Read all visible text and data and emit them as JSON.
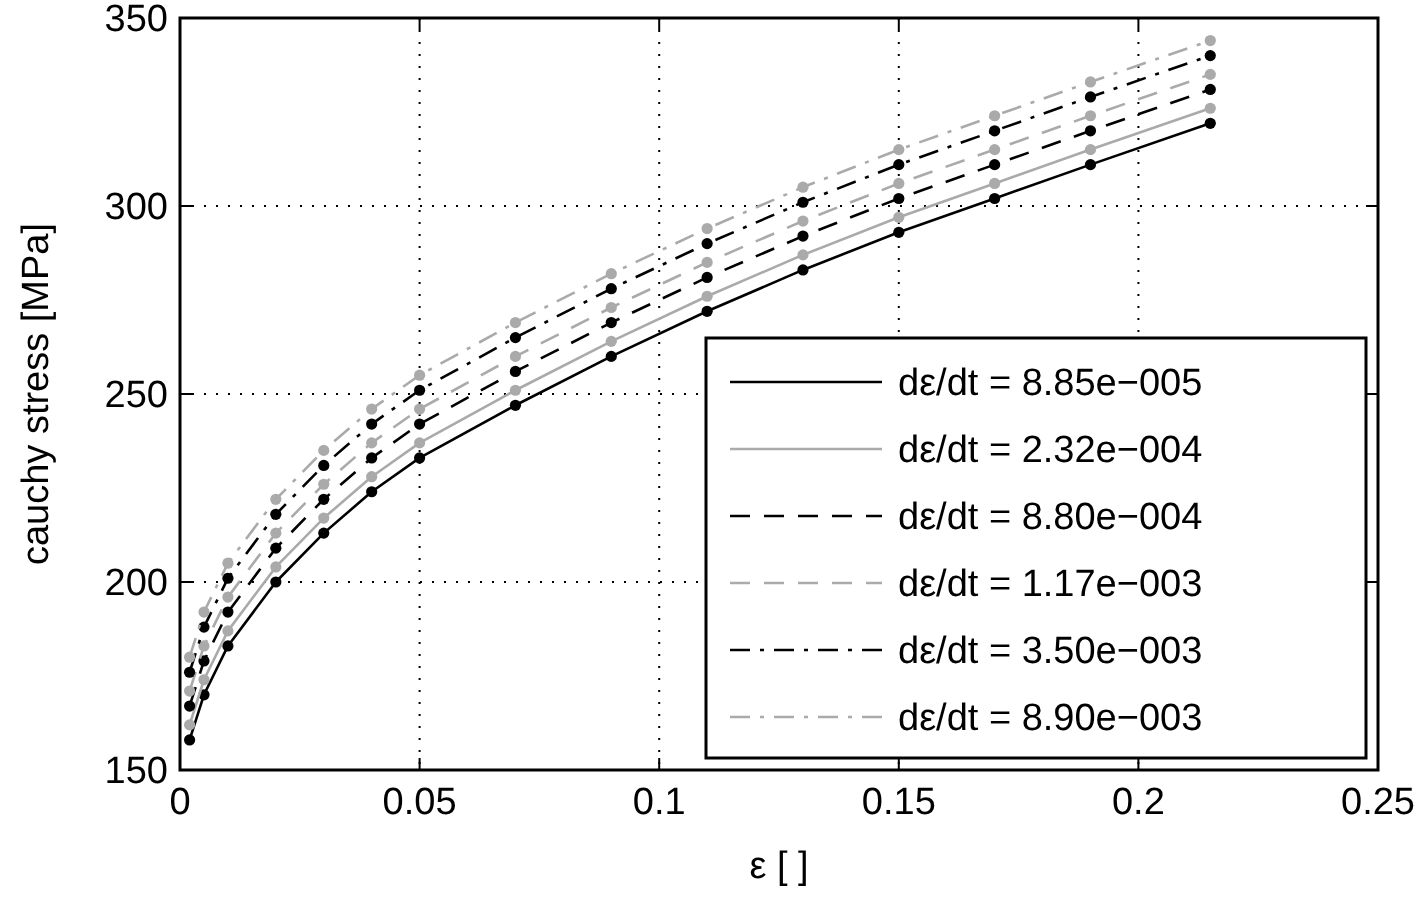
{
  "chart_data": {
    "type": "line",
    "xlabel": "ε [ ]",
    "ylabel": "cauchy stress [MPa]",
    "xlim": [
      0,
      0.25
    ],
    "xticks": [
      0,
      0.05,
      0.1,
      0.15,
      0.2,
      0.25
    ],
    "ylim": [
      150,
      350
    ],
    "yticks": [
      150,
      200,
      250,
      300,
      350
    ],
    "grid": true,
    "legend": "bottom right",
    "marker": "circle",
    "x": [
      0.002,
      0.005,
      0.01,
      0.02,
      0.03,
      0.04,
      0.05,
      0.07,
      0.09,
      0.11,
      0.13,
      0.15,
      0.17,
      0.19,
      0.215
    ],
    "series": [
      {
        "name": "dε/dt = 8.85e−005",
        "color": "#000000",
        "line_style": "solid",
        "values": [
          158,
          170,
          183,
          200,
          213,
          224,
          233,
          247,
          260,
          272,
          283,
          293,
          302,
          311,
          322
        ]
      },
      {
        "name": "dε/dt = 2.32e−004",
        "color": "#aaaaaa",
        "line_style": "solid",
        "values": [
          162,
          174,
          187,
          204,
          217,
          228,
          237,
          251,
          264,
          276,
          287,
          297,
          306,
          315,
          326
        ]
      },
      {
        "name": "dε/dt = 8.80e−004",
        "color": "#000000",
        "line_style": "dashed",
        "values": [
          167,
          179,
          192,
          209,
          222,
          233,
          242,
          256,
          269,
          281,
          292,
          302,
          311,
          320,
          331
        ]
      },
      {
        "name": "dε/dt = 1.17e−003",
        "color": "#aaaaaa",
        "line_style": "dashed",
        "values": [
          171,
          183,
          196,
          213,
          226,
          237,
          246,
          260,
          273,
          285,
          296,
          306,
          315,
          324,
          335
        ]
      },
      {
        "name": "dε/dt = 3.50e−003",
        "color": "#000000",
        "line_style": "dashdot",
        "values": [
          176,
          188,
          201,
          218,
          231,
          242,
          251,
          265,
          278,
          290,
          301,
          311,
          320,
          329,
          340
        ]
      },
      {
        "name": "dε/dt = 8.90e−003",
        "color": "#aaaaaa",
        "line_style": "dashdot",
        "values": [
          180,
          192,
          205,
          222,
          235,
          246,
          255,
          269,
          282,
          294,
          305,
          315,
          324,
          333,
          344
        ]
      }
    ]
  }
}
